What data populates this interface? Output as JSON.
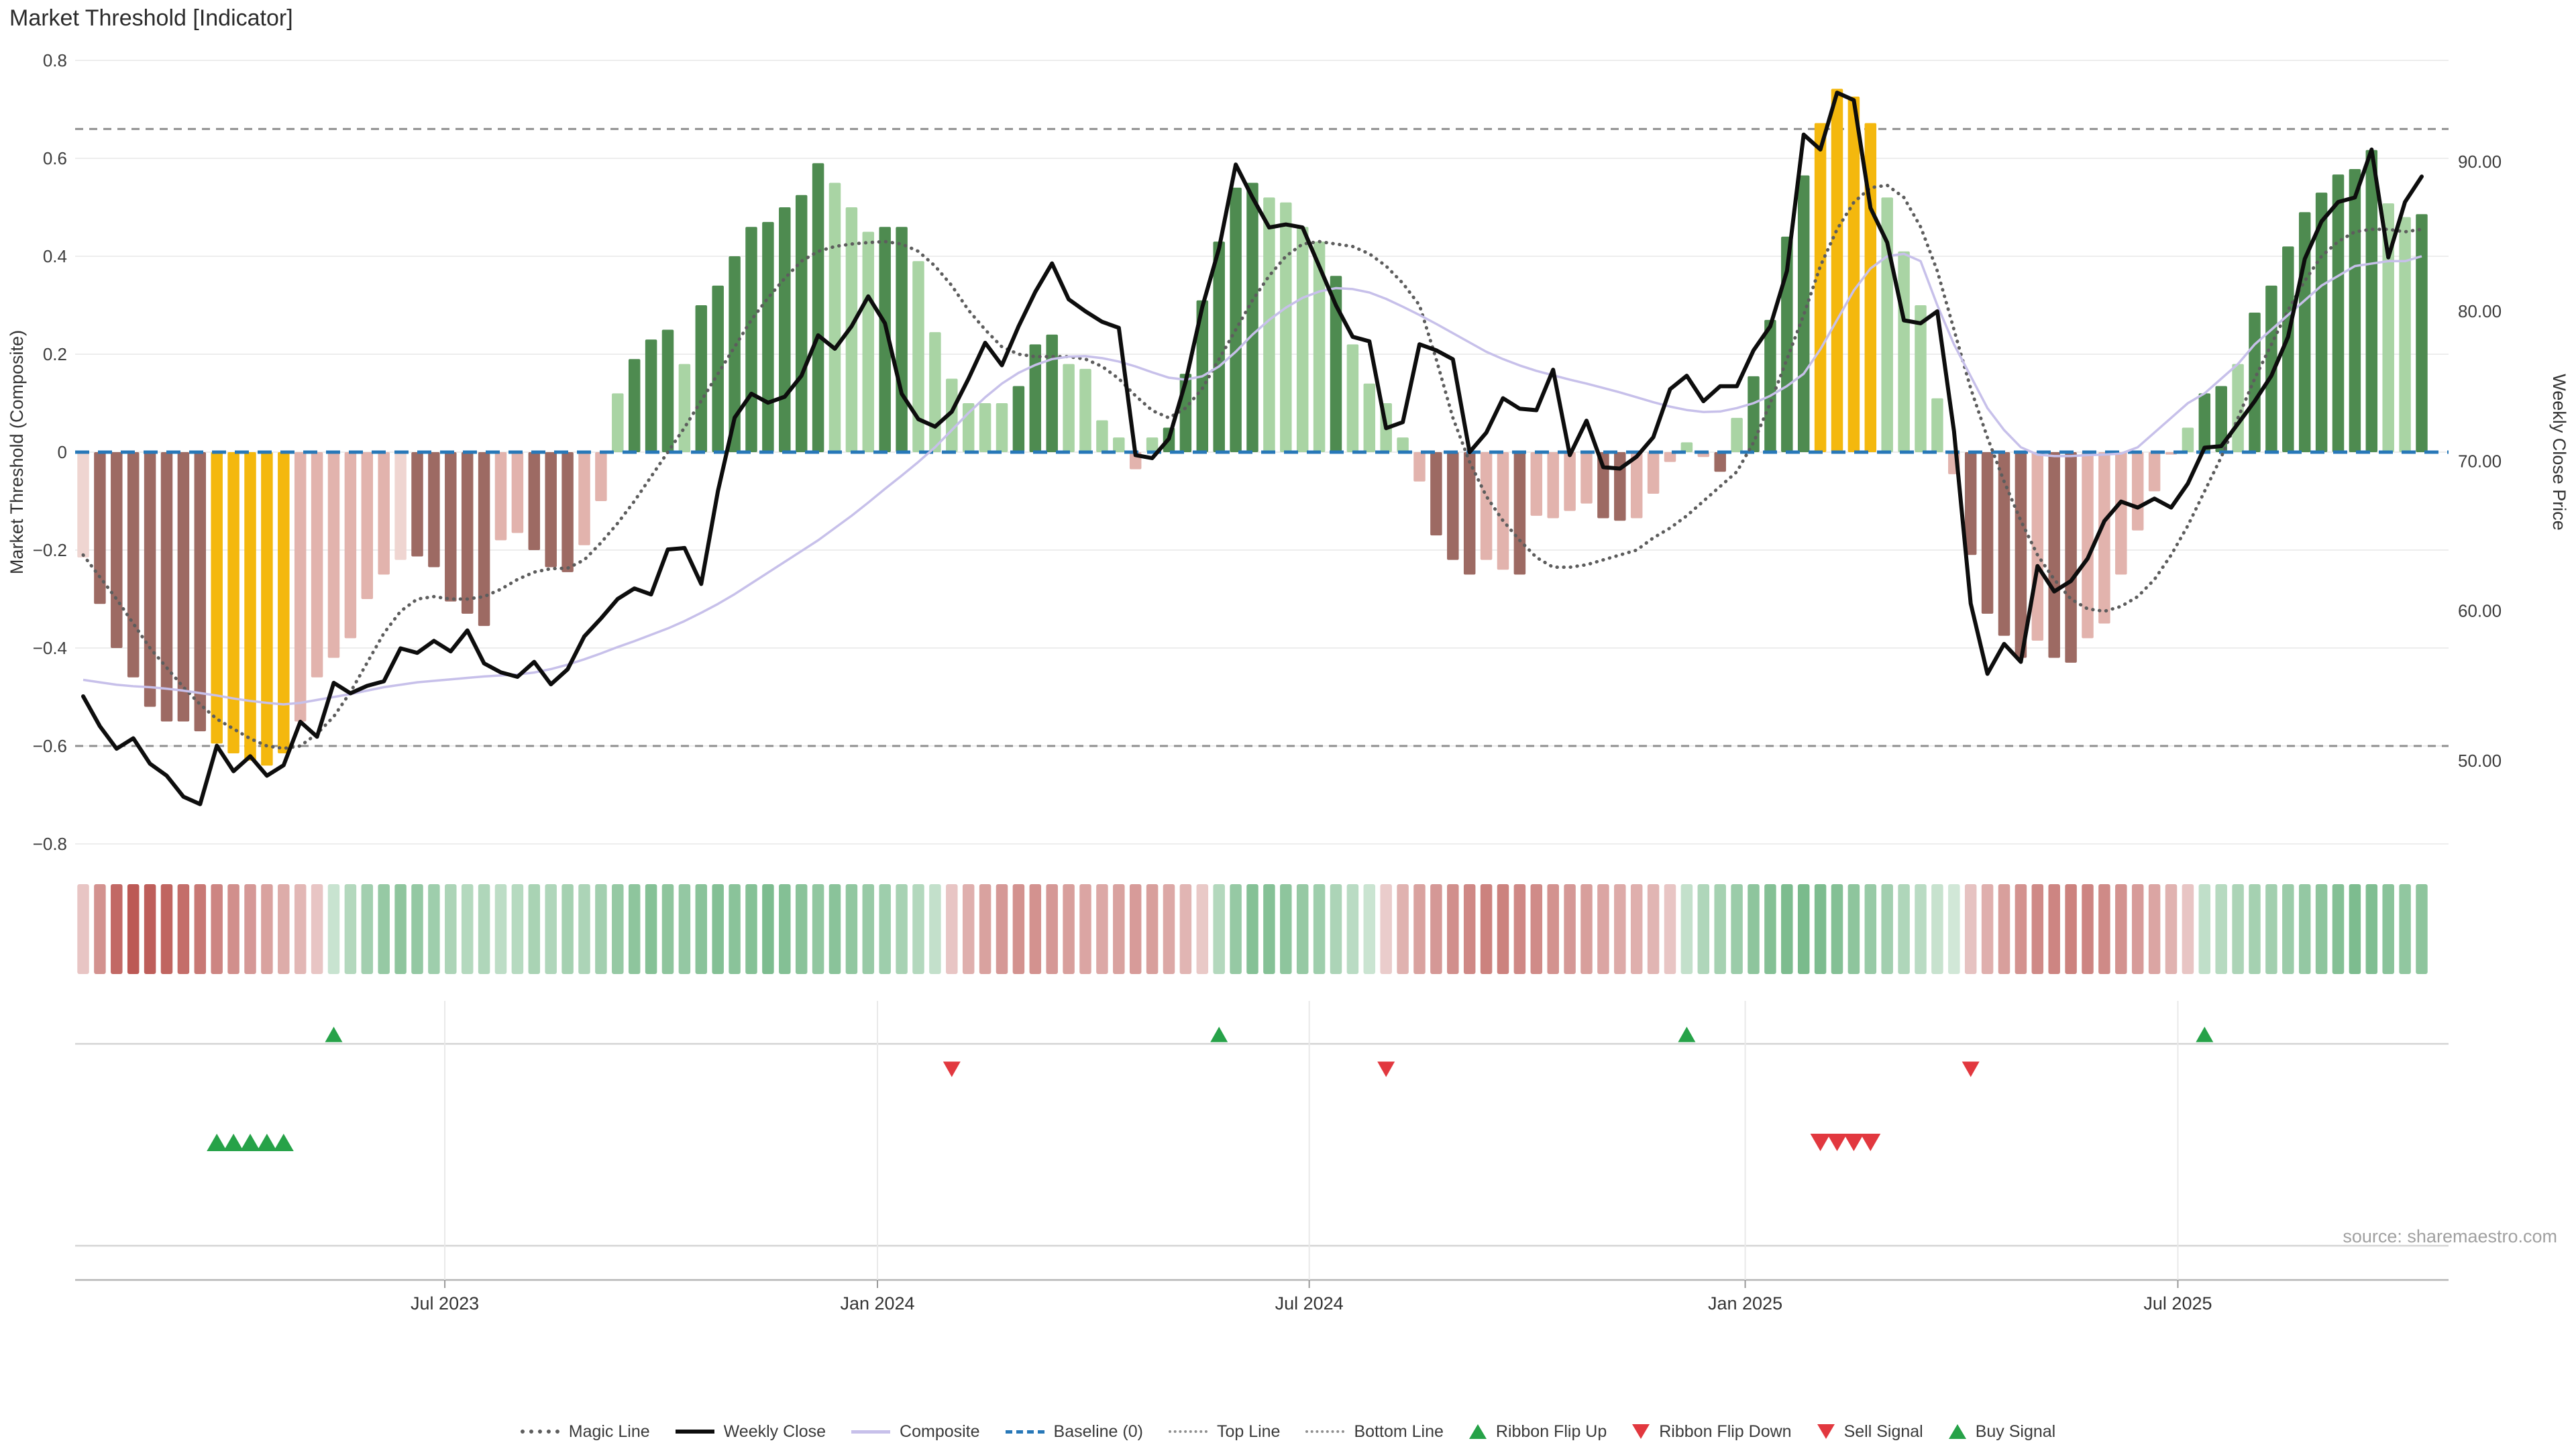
{
  "title": "Market Threshold [Indicator]",
  "source_note": "source: sharemaestro.com",
  "axes": {
    "left_label": "Market Threshold (Composite)",
    "right_label": "Weekly Close Price",
    "left_ticks": [
      "0.8",
      "0.6",
      "0.4",
      "0.2",
      "0",
      "−0.2",
      "−0.4",
      "−0.6",
      "−0.8"
    ],
    "left_tick_values": [
      0.8,
      0.6,
      0.4,
      0.2,
      0,
      -0.2,
      -0.4,
      -0.6,
      -0.8
    ],
    "right_ticks": [
      "90.00",
      "80.00",
      "70.00",
      "60.00",
      "50.00"
    ],
    "right_tick_values": [
      90,
      80,
      70,
      60,
      50
    ],
    "x_labels": [
      {
        "label": "Jul 2023",
        "idx": 21.65
      },
      {
        "label": "Jan 2024",
        "idx": 47.55
      },
      {
        "label": "Jul 2024",
        "idx": 73.4
      },
      {
        "label": "Jan 2025",
        "idx": 99.5
      },
      {
        "label": "Jul 2025",
        "idx": 125.4
      }
    ]
  },
  "legend": [
    {
      "label": "Magic Line",
      "marker": "dotted-dark"
    },
    {
      "label": "Weekly Close",
      "marker": "solid-black"
    },
    {
      "label": "Composite",
      "marker": "solid-lavender"
    },
    {
      "label": "Baseline (0)",
      "marker": "dashed-blue"
    },
    {
      "label": "Top Line",
      "marker": "dotted-gray"
    },
    {
      "label": "Bottom Line",
      "marker": "dotted-gray"
    },
    {
      "label": "Ribbon Flip Up",
      "marker": "tri-up"
    },
    {
      "label": "Ribbon Flip Down",
      "marker": "tri-down"
    },
    {
      "label": "Sell Signal",
      "marker": "tri-down"
    },
    {
      "label": "Buy Signal",
      "marker": "tri-up"
    }
  ],
  "colors": {
    "bar_palette": {
      "dg": "#4e8b50",
      "lg": "#a9d4a4",
      "y": "#f4b80e",
      "m": "#9d6a63",
      "p": "#e2b3ad",
      "lp": "#efd5d1"
    },
    "weekly_close": "#0d0d0d",
    "composite": "#c7c0ea",
    "magic": "#5d5d5d",
    "top_bottom": "#8f8f8f",
    "baseline": "#2878b8",
    "grid": "#ededed",
    "ribbon_red": "#b2413c",
    "ribbon_green": "#3a9a55",
    "signal_up": "#26a248",
    "signal_down": "#e2383f",
    "tick_text": "#3d3d3d",
    "source_text": "#a0a0a0",
    "panel_line": "#d4d4d4",
    "panel_axis": "#b5b5b5",
    "panel_vline": "#e9e9e9"
  },
  "chart_data": {
    "type": "bar",
    "subtype": "indicator-composite-weekly",
    "n_weeks": 141,
    "ylabel_left": "Market Threshold (Composite)",
    "ylabel_right": "Weekly Close Price",
    "ylim_left": [
      -0.8,
      0.8
    ],
    "right_axis_ticks": [
      50,
      60,
      70,
      80,
      90
    ],
    "top_line": 0.66,
    "bottom_line": -0.6,
    "baseline": 0,
    "threshold": [
      -0.215,
      -0.31,
      -0.4,
      -0.46,
      -0.52,
      -0.55,
      -0.55,
      -0.57,
      -0.595,
      -0.615,
      -0.63,
      -0.64,
      -0.615,
      -0.55,
      -0.46,
      -0.42,
      -0.38,
      -0.3,
      -0.25,
      -0.22,
      -0.213,
      -0.235,
      -0.305,
      -0.33,
      -0.355,
      -0.18,
      -0.165,
      -0.2,
      -0.235,
      -0.245,
      -0.19,
      -0.1,
      0.12,
      0.19,
      0.23,
      0.25,
      0.18,
      0.3,
      0.34,
      0.4,
      0.46,
      0.47,
      0.5,
      0.525,
      0.59,
      0.55,
      0.5,
      0.45,
      0.46,
      0.46,
      0.39,
      0.245,
      0.15,
      0.1,
      0.1,
      0.1,
      0.135,
      0.22,
      0.24,
      0.18,
      0.17,
      0.065,
      0.03,
      -0.035,
      0.03,
      0.05,
      0.16,
      0.31,
      0.43,
      0.54,
      0.55,
      0.52,
      0.51,
      0.46,
      0.43,
      0.36,
      0.22,
      0.14,
      0.1,
      0.03,
      -0.06,
      -0.17,
      -0.22,
      -0.25,
      -0.22,
      -0.24,
      -0.25,
      -0.13,
      -0.135,
      -0.12,
      -0.105,
      -0.135,
      -0.14,
      -0.135,
      -0.085,
      -0.02,
      0.02,
      -0.01,
      -0.04,
      0.07,
      0.155,
      0.27,
      0.44,
      0.565,
      0.672,
      0.742,
      0.726,
      0.672,
      0.52,
      0.41,
      0.3,
      0.11,
      -0.045,
      -0.21,
      -0.33,
      -0.375,
      -0.42,
      -0.385,
      -0.42,
      -0.43,
      -0.38,
      -0.35,
      -0.25,
      -0.16,
      -0.08,
      -0.005,
      0.05,
      0.12,
      0.135,
      0.18,
      0.285,
      0.34,
      0.42,
      0.49,
      0.53,
      0.567,
      0.578,
      0.617,
      0.508,
      0.48,
      0.486
    ],
    "bar_colors": [
      "lp",
      "m",
      "m",
      "m",
      "m",
      "m",
      "m",
      "m",
      "y",
      "y",
      "y",
      "y",
      "y",
      "p",
      "p",
      "p",
      "p",
      "p",
      "p",
      "lp",
      "m",
      "m",
      "m",
      "m",
      "m",
      "p",
      "p",
      "m",
      "m",
      "m",
      "p",
      "p",
      "lg",
      "dg",
      "dg",
      "dg",
      "lg",
      "dg",
      "dg",
      "dg",
      "dg",
      "dg",
      "dg",
      "dg",
      "dg",
      "lg",
      "lg",
      "lg",
      "dg",
      "dg",
      "lg",
      "lg",
      "lg",
      "lg",
      "lg",
      "lg",
      "dg",
      "dg",
      "dg",
      "lg",
      "lg",
      "lg",
      "lg",
      "p",
      "lg",
      "dg",
      "dg",
      "dg",
      "dg",
      "dg",
      "dg",
      "lg",
      "lg",
      "lg",
      "lg",
      "dg",
      "lg",
      "lg",
      "lg",
      "lg",
      "p",
      "m",
      "m",
      "m",
      "p",
      "p",
      "m",
      "p",
      "p",
      "p",
      "p",
      "m",
      "m",
      "p",
      "p",
      "p",
      "lg",
      "p",
      "m",
      "lg",
      "dg",
      "dg",
      "dg",
      "dg",
      "y",
      "y",
      "y",
      "y",
      "lg",
      "lg",
      "lg",
      "lg",
      "p",
      "m",
      "m",
      "m",
      "m",
      "p",
      "m",
      "m",
      "p",
      "p",
      "p",
      "p",
      "p",
      "p",
      "lg",
      "dg",
      "dg",
      "lg",
      "dg",
      "dg",
      "dg",
      "dg",
      "dg",
      "dg",
      "dg",
      "dg",
      "lg",
      "lg",
      "dg"
    ],
    "weekly_close": [
      54.3,
      52.3,
      50.8,
      51.5,
      49.8,
      49.0,
      47.6,
      47.1,
      51.0,
      49.3,
      50.3,
      49.0,
      49.7,
      52.6,
      51.6,
      55.2,
      54.5,
      55.0,
      55.3,
      57.5,
      57.2,
      58.0,
      57.3,
      58.7,
      56.5,
      55.9,
      55.6,
      56.6,
      55.1,
      56.1,
      58.3,
      59.5,
      60.8,
      61.5,
      61.1,
      64.1,
      64.2,
      61.8,
      68.0,
      72.9,
      74.5,
      73.9,
      74.3,
      75.7,
      78.4,
      77.5,
      79.0,
      81.0,
      79.2,
      74.5,
      72.8,
      72.3,
      73.3,
      75.5,
      77.9,
      76.4,
      79.0,
      81.3,
      83.2,
      80.8,
      80.0,
      79.3,
      78.9,
      70.4,
      70.2,
      71.5,
      75.3,
      80.3,
      84.2,
      89.8,
      87.6,
      85.6,
      85.8,
      85.6,
      83.0,
      80.4,
      78.3,
      78.0,
      72.2,
      72.6,
      77.8,
      77.4,
      76.8,
      70.6,
      71.9,
      74.2,
      73.5,
      73.4,
      76.1,
      70.4,
      72.7,
      69.6,
      69.5,
      70.3,
      71.6,
      74.8,
      75.7,
      74.0,
      75.0,
      75.0,
      77.4,
      79.0,
      82.7,
      91.8,
      90.8,
      94.6,
      94.1,
      86.9,
      84.6,
      79.4,
      79.2,
      80.0,
      72.0,
      60.5,
      55.8,
      57.8,
      56.6,
      63.0,
      61.3,
      62.0,
      63.5,
      66.0,
      67.3,
      66.9,
      67.5,
      66.9,
      68.5,
      70.9,
      71.0,
      72.5,
      74.0,
      75.7,
      78.3,
      83.5,
      86.0,
      87.3,
      87.6,
      90.8,
      83.6,
      87.3,
      89.0
    ],
    "composite": [
      -0.465,
      -0.47,
      -0.475,
      -0.478,
      -0.48,
      -0.483,
      -0.487,
      -0.492,
      -0.497,
      -0.503,
      -0.508,
      -0.512,
      -0.515,
      -0.512,
      -0.506,
      -0.5,
      -0.494,
      -0.487,
      -0.48,
      -0.475,
      -0.47,
      -0.467,
      -0.464,
      -0.461,
      -0.458,
      -0.456,
      -0.454,
      -0.45,
      -0.443,
      -0.434,
      -0.423,
      -0.411,
      -0.398,
      -0.386,
      -0.373,
      -0.36,
      -0.345,
      -0.328,
      -0.31,
      -0.29,
      -0.268,
      -0.246,
      -0.224,
      -0.202,
      -0.18,
      -0.155,
      -0.13,
      -0.103,
      -0.075,
      -0.048,
      -0.02,
      0.01,
      0.045,
      0.08,
      0.112,
      0.14,
      0.162,
      0.178,
      0.19,
      0.195,
      0.196,
      0.192,
      0.185,
      0.175,
      0.163,
      0.152,
      0.148,
      0.155,
      0.175,
      0.205,
      0.24,
      0.27,
      0.295,
      0.315,
      0.328,
      0.335,
      0.333,
      0.326,
      0.313,
      0.297,
      0.28,
      0.262,
      0.243,
      0.224,
      0.205,
      0.19,
      0.177,
      0.166,
      0.157,
      0.148,
      0.14,
      0.131,
      0.122,
      0.112,
      0.102,
      0.093,
      0.086,
      0.082,
      0.083,
      0.09,
      0.1,
      0.115,
      0.135,
      0.16,
      0.21,
      0.27,
      0.33,
      0.375,
      0.4,
      0.405,
      0.39,
      0.3,
      0.22,
      0.155,
      0.09,
      0.045,
      0.01,
      -0.005,
      -0.008,
      -0.008,
      -0.006,
      -0.005,
      -0.003,
      0.01,
      0.04,
      0.07,
      0.1,
      0.12,
      0.15,
      0.18,
      0.22,
      0.25,
      0.28,
      0.31,
      0.34,
      0.36,
      0.38,
      0.385,
      0.39,
      0.39,
      0.4
    ],
    "magic_line": [
      -0.21,
      -0.255,
      -0.3,
      -0.35,
      -0.4,
      -0.44,
      -0.48,
      -0.515,
      -0.545,
      -0.565,
      -0.585,
      -0.6,
      -0.605,
      -0.6,
      -0.575,
      -0.54,
      -0.49,
      -0.43,
      -0.37,
      -0.325,
      -0.3,
      -0.295,
      -0.3,
      -0.3,
      -0.295,
      -0.28,
      -0.26,
      -0.245,
      -0.238,
      -0.237,
      -0.22,
      -0.185,
      -0.145,
      -0.1,
      -0.05,
      0.0,
      0.05,
      0.105,
      0.16,
      0.215,
      0.27,
      0.315,
      0.355,
      0.39,
      0.41,
      0.42,
      0.425,
      0.428,
      0.43,
      0.425,
      0.41,
      0.38,
      0.34,
      0.29,
      0.25,
      0.215,
      0.2,
      0.195,
      0.195,
      0.195,
      0.19,
      0.175,
      0.15,
      0.115,
      0.085,
      0.07,
      0.09,
      0.13,
      0.19,
      0.25,
      0.31,
      0.36,
      0.4,
      0.425,
      0.43,
      0.425,
      0.42,
      0.405,
      0.38,
      0.345,
      0.3,
      0.19,
      0.07,
      -0.02,
      -0.09,
      -0.14,
      -0.18,
      -0.215,
      -0.235,
      -0.235,
      -0.23,
      -0.22,
      -0.21,
      -0.2,
      -0.175,
      -0.155,
      -0.13,
      -0.1,
      -0.07,
      -0.04,
      0.02,
      0.1,
      0.19,
      0.28,
      0.38,
      0.455,
      0.51,
      0.54,
      0.545,
      0.52,
      0.46,
      0.37,
      0.25,
      0.13,
      0.03,
      -0.06,
      -0.14,
      -0.21,
      -0.26,
      -0.3,
      -0.32,
      -0.325,
      -0.315,
      -0.295,
      -0.26,
      -0.21,
      -0.15,
      -0.08,
      -0.01,
      0.07,
      0.15,
      0.22,
      0.29,
      0.35,
      0.4,
      0.43,
      0.45,
      0.455,
      0.455,
      0.45,
      0.455
    ],
    "ribbon_dir": "rrrrrrrrrrrrrrrgggggggggggggggggggggggggggggggggggggrrrrrrrrrrrrrrrrggggggggggrrrrrrrrrrrrrrrrrrgggggggggggggggggrrrrrrrrrrrrrrgggggggggggggg",
    "ribbon_intensity": [
      0.18,
      0.5,
      0.75,
      0.85,
      0.82,
      0.78,
      0.72,
      0.66,
      0.58,
      0.52,
      0.46,
      0.4,
      0.34,
      0.27,
      0.18,
      0.15,
      0.28,
      0.38,
      0.45,
      0.5,
      0.46,
      0.4,
      0.32,
      0.27,
      0.3,
      0.22,
      0.26,
      0.34,
      0.3,
      0.36,
      0.32,
      0.38,
      0.45,
      0.5,
      0.55,
      0.5,
      0.46,
      0.52,
      0.56,
      0.52,
      0.55,
      0.6,
      0.56,
      0.52,
      0.48,
      0.52,
      0.48,
      0.44,
      0.4,
      0.35,
      0.28,
      0.18,
      0.18,
      0.32,
      0.4,
      0.46,
      0.5,
      0.5,
      0.46,
      0.42,
      0.38,
      0.36,
      0.4,
      0.44,
      0.42,
      0.36,
      0.28,
      0.16,
      0.28,
      0.45,
      0.55,
      0.55,
      0.5,
      0.45,
      0.4,
      0.32,
      0.24,
      0.14,
      0.14,
      0.3,
      0.4,
      0.46,
      0.52,
      0.56,
      0.6,
      0.6,
      0.56,
      0.54,
      0.5,
      0.46,
      0.42,
      0.38,
      0.35,
      0.32,
      0.28,
      0.18,
      0.18,
      0.3,
      0.36,
      0.42,
      0.5,
      0.56,
      0.6,
      0.62,
      0.6,
      0.56,
      0.5,
      0.44,
      0.38,
      0.3,
      0.24,
      0.16,
      0.1,
      0.2,
      0.32,
      0.42,
      0.5,
      0.55,
      0.58,
      0.6,
      0.58,
      0.55,
      0.5,
      0.44,
      0.38,
      0.3,
      0.18,
      0.2,
      0.26,
      0.32,
      0.36,
      0.38,
      0.42,
      0.46,
      0.5,
      0.56,
      0.6,
      0.58,
      0.52,
      0.48,
      0.5
    ],
    "signals": {
      "ribbon_flip_up_idx": [
        15,
        68,
        96,
        127
      ],
      "ribbon_flip_down_idx": [
        52,
        78,
        113
      ],
      "buy_idx": [
        8,
        9,
        10,
        11,
        12
      ],
      "sell_idx": [
        104,
        105,
        106,
        107
      ]
    }
  }
}
